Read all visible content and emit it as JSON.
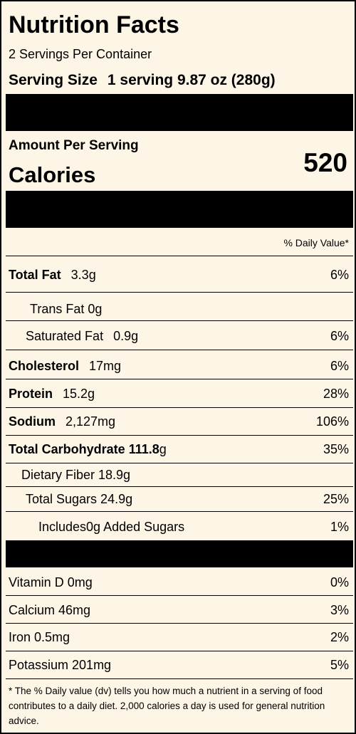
{
  "header": {
    "title": "Nutrition Facts",
    "servings": "2 Servings Per Container",
    "serving_size_label": "Serving Size",
    "serving_size_value": "1 serving 9.87 oz (280g)"
  },
  "calories_section": {
    "amount_label": "Amount Per Serving",
    "calories_label": "Calories",
    "calories_value": "520"
  },
  "dv_header": "% Daily Value*",
  "nutrients": [
    {
      "name": "Total Fat",
      "amount": "3.3g",
      "dv": "6%"
    },
    {
      "name": "Trans Fat 0g",
      "amount": "",
      "dv": ""
    },
    {
      "name": "Saturated Fat",
      "amount": "0.9g",
      "dv": "6%"
    },
    {
      "name": "Cholesterol",
      "amount": "17mg",
      "dv": "6%"
    },
    {
      "name": "Protein",
      "amount": "15.2g",
      "dv": "28%"
    },
    {
      "name": "Sodium",
      "amount": "2,127mg",
      "dv": "106%"
    },
    {
      "name": "Total Carbohydrate 111.8",
      "amount": "g",
      "dv": "35%"
    },
    {
      "name": "Dietary Fiber 18.9g",
      "amount": "",
      "dv": ""
    },
    {
      "name": "Total Sugars 24.9g",
      "amount": "",
      "dv": "25%"
    },
    {
      "name": "Includes0g Added Sugars",
      "amount": "",
      "dv": "1%"
    }
  ],
  "vitamins": [
    {
      "name": "Vitamin D 0mg",
      "dv": "0%"
    },
    {
      "name": "Calcium 46mg",
      "dv": "3%"
    },
    {
      "name": "Iron 0.5mg",
      "dv": "2%"
    },
    {
      "name": "Potassium 201mg",
      "dv": "5%"
    }
  ],
  "footnote": "* The % Daily value (dv) tells you how much a nutrient in a serving of food contributes to a daily diet. 2,000 calories a day is used for general nutrition advice."
}
